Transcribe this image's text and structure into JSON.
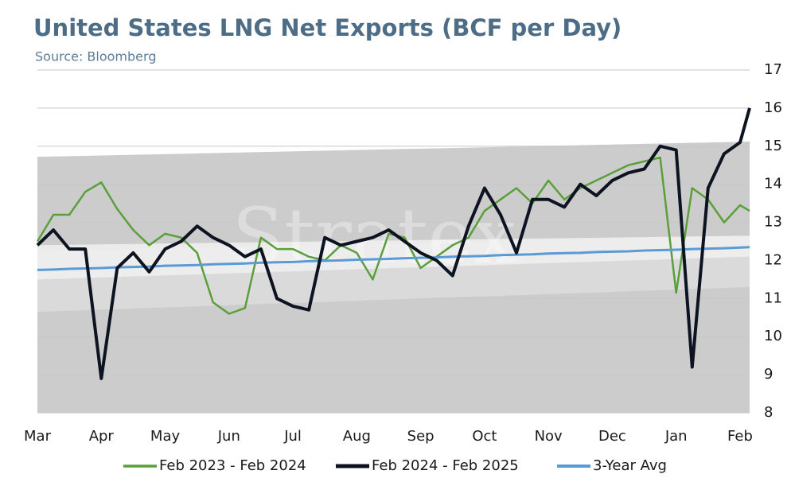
{
  "chart_data": {
    "type": "line",
    "title": "United States LNG Net Exports (BCF per Day)",
    "subtitle": "Source: Bloomberg",
    "watermark": "Stratex",
    "x": [
      0,
      0.25,
      0.5,
      0.75,
      1,
      1.25,
      1.5,
      1.75,
      2,
      2.25,
      2.5,
      2.75,
      3,
      3.25,
      3.5,
      3.75,
      4,
      4.25,
      4.5,
      4.75,
      5,
      5.25,
      5.5,
      5.75,
      6,
      6.25,
      6.5,
      6.75,
      7,
      7.25,
      7.5,
      7.75,
      8,
      8.25,
      8.5,
      8.75,
      9,
      9.25,
      9.5,
      9.75,
      10,
      10.25,
      10.5,
      10.75,
      11,
      11.15
    ],
    "xlim": [
      0,
      11.15
    ],
    "xticks": [
      {
        "value": 0,
        "label": "Mar"
      },
      {
        "value": 1,
        "label": "Apr"
      },
      {
        "value": 2,
        "label": "May"
      },
      {
        "value": 3,
        "label": "Jun"
      },
      {
        "value": 4,
        "label": "Jul"
      },
      {
        "value": 5,
        "label": "Aug"
      },
      {
        "value": 6,
        "label": "Sep"
      },
      {
        "value": 7,
        "label": "Oct"
      },
      {
        "value": 8,
        "label": "Nov"
      },
      {
        "value": 9,
        "label": "Dec"
      },
      {
        "value": 10,
        "label": "Jan"
      },
      {
        "value": 11,
        "label": "Feb"
      }
    ],
    "ylim": [
      8,
      17
    ],
    "yticks": [
      8,
      9,
      10,
      11,
      12,
      13,
      14,
      15,
      16,
      17
    ],
    "grid": true,
    "legend": "bottom",
    "bands": [
      {
        "color": "#c7c7c7",
        "x": [
          0,
          11.15
        ],
        "lower": [
          8,
          8
        ],
        "upper": [
          14.72,
          15.12
        ]
      },
      {
        "color": "#dcdcdc",
        "x": [
          0,
          11.15
        ],
        "lower": [
          10.65,
          11.3
        ],
        "upper": [
          12.25,
          12.65
        ]
      },
      {
        "color": "#eeeeee",
        "x": [
          0,
          11.15
        ],
        "lower": [
          11.5,
          12.1
        ],
        "upper": [
          12.4,
          12.65
        ]
      }
    ],
    "series": [
      {
        "name": "Feb 2023 - Feb 2024",
        "color": "#5b9f3c",
        "width": 2.5,
        "values": [
          12.5,
          13.2,
          13.2,
          13.8,
          14.05,
          13.35,
          12.8,
          12.4,
          12.7,
          12.6,
          12.2,
          10.9,
          10.6,
          10.75,
          12.6,
          12.3,
          12.3,
          12.1,
          12.0,
          12.4,
          12.2,
          11.5,
          12.7,
          12.6,
          11.8,
          12.1,
          12.4,
          12.6,
          13.3,
          13.6,
          13.9,
          13.5,
          14.1,
          13.6,
          13.9,
          14.1,
          14.3,
          14.5,
          14.6,
          14.7,
          11.15,
          13.9,
          13.6,
          13.0,
          13.45,
          13.3
        ]
      },
      {
        "name": "Feb 2024 - Feb 2025",
        "color": "#0d1321",
        "width": 4,
        "values": [
          12.4,
          12.8,
          12.3,
          12.3,
          8.9,
          11.8,
          12.2,
          11.7,
          12.3,
          12.5,
          12.9,
          12.6,
          12.4,
          12.1,
          12.3,
          11.0,
          10.8,
          10.7,
          12.6,
          12.4,
          12.5,
          12.6,
          12.8,
          12.5,
          12.2,
          12.0,
          11.6,
          12.9,
          13.9,
          13.2,
          12.2,
          13.6,
          13.6,
          13.4,
          14.0,
          13.7,
          14.1,
          14.3,
          14.4,
          15.0,
          14.9,
          9.2,
          13.9,
          14.8,
          15.1,
          16.0
        ]
      },
      {
        "name": "3-Year Avg",
        "color": "#5b9bd5",
        "width": 3,
        "values": [
          11.75,
          11.76,
          11.78,
          11.79,
          11.8,
          11.82,
          11.83,
          11.84,
          11.86,
          11.87,
          11.88,
          11.9,
          11.91,
          11.92,
          11.94,
          11.95,
          11.96,
          11.98,
          11.99,
          12.0,
          12.02,
          12.03,
          12.04,
          12.06,
          12.07,
          12.08,
          12.1,
          12.11,
          12.12,
          12.14,
          12.15,
          12.16,
          12.18,
          12.19,
          12.2,
          12.22,
          12.23,
          12.24,
          12.26,
          12.27,
          12.28,
          12.3,
          12.31,
          12.32,
          12.34,
          12.35
        ]
      }
    ]
  }
}
